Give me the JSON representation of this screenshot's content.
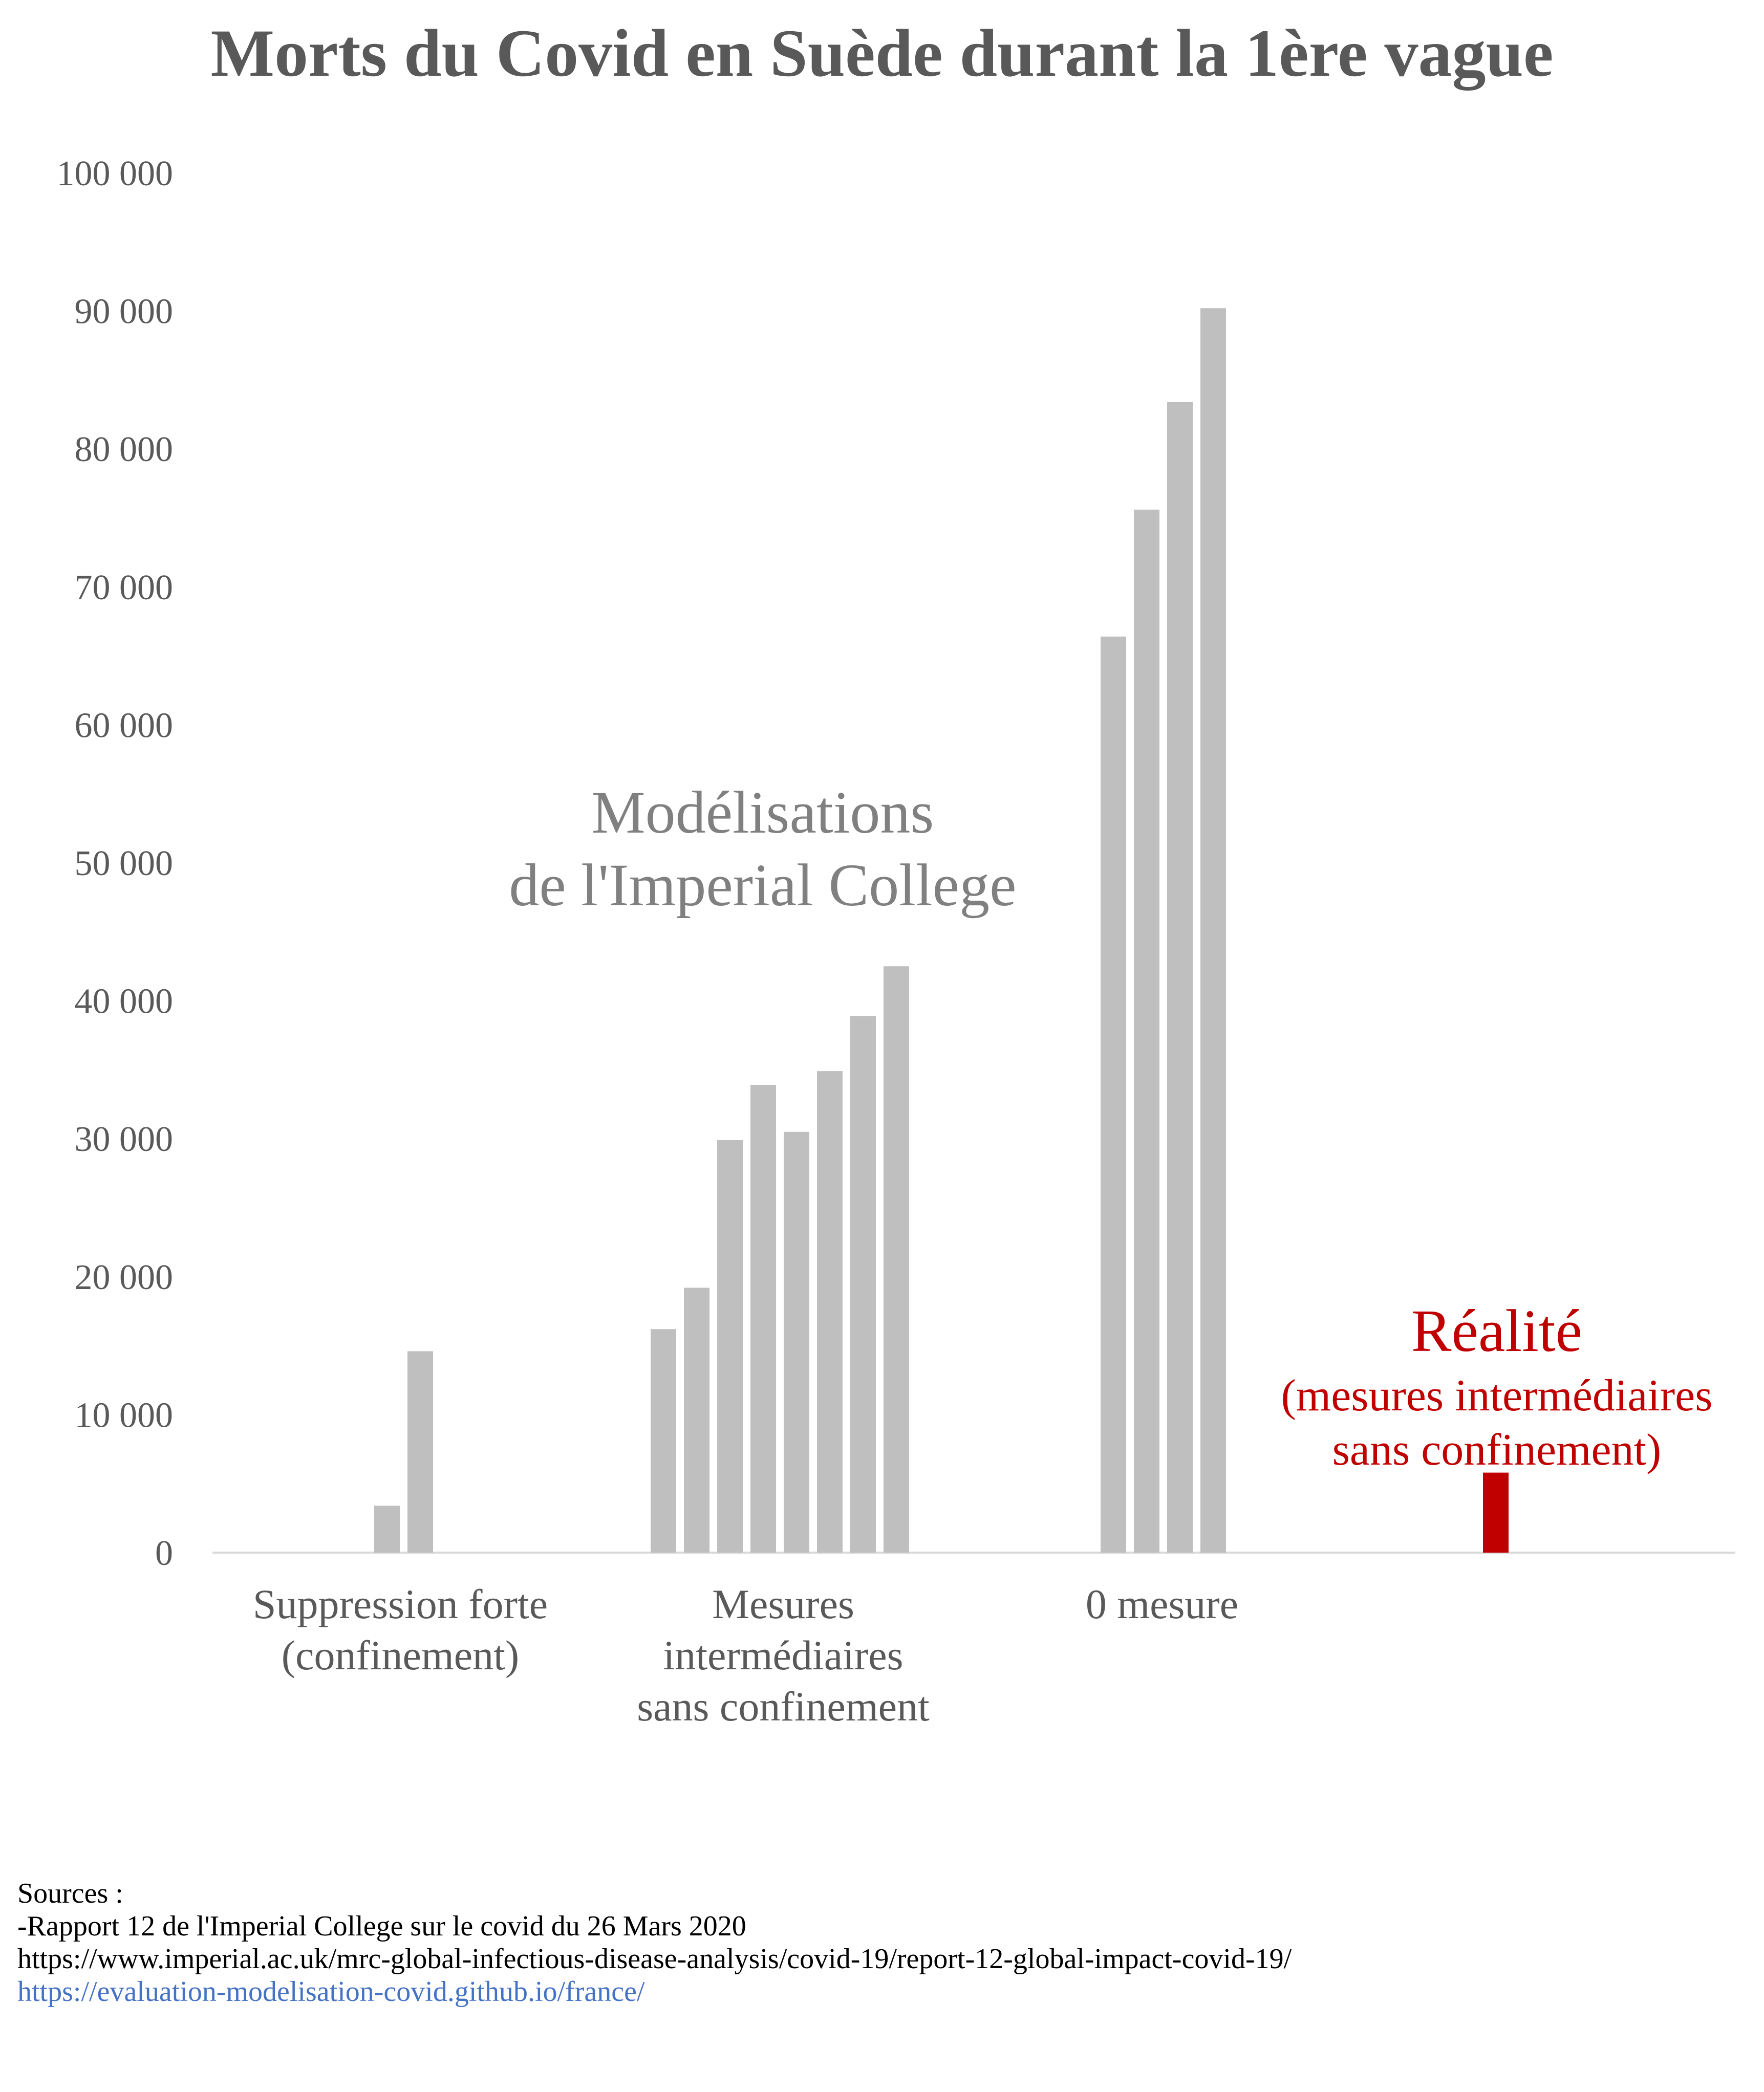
{
  "chart_data": {
    "type": "bar",
    "title": "Morts du Covid en Suède durant la 1ère vague",
    "xlabel": "",
    "ylabel": "",
    "ylim": [
      0,
      100000
    ],
    "yticks": [
      0,
      10000,
      20000,
      30000,
      40000,
      50000,
      60000,
      70000,
      80000,
      90000,
      100000
    ],
    "ytick_labels": [
      "0",
      "10 000",
      "20 000",
      "30 000",
      "40 000",
      "50 000",
      "60 000",
      "70 000",
      "80 000",
      "90 000",
      "100 000"
    ],
    "grid": false,
    "categories": [
      {
        "label_lines": [
          "Suppression forte",
          "(confinement)"
        ],
        "values": [
          3400,
          14600
        ]
      },
      {
        "label_lines": [
          "Mesures",
          "intermédiaires",
          "sans confinement"
        ],
        "values": [
          16200,
          19200,
          29900,
          33900,
          30500,
          34900,
          38900,
          42500
        ]
      },
      {
        "label_lines": [
          "0 mesure"
        ],
        "values": [
          66400,
          75600,
          83400,
          90200
        ]
      },
      {
        "label_lines": [],
        "values": [
          5800
        ]
      }
    ],
    "model_color": "#bfbfbf",
    "reality_color": "#c00000",
    "annotations": {
      "model_lines": [
        "Modélisations",
        "de l'Imperial College"
      ],
      "reality_title": "Réalité",
      "reality_lines": [
        "(mesures intermédiaires",
        "sans confinement)"
      ]
    }
  },
  "sources": {
    "heading": "Sources :",
    "line1": "-Rapport 12 de l'Imperial College sur le covid du 26 Mars 2020",
    "line2": " https://www.imperial.ac.uk/mrc-global-infectious-disease-analysis/covid-19/report-12-global-impact-covid-19/",
    "link": "https://evaluation-modelisation-covid.github.io/france/"
  }
}
